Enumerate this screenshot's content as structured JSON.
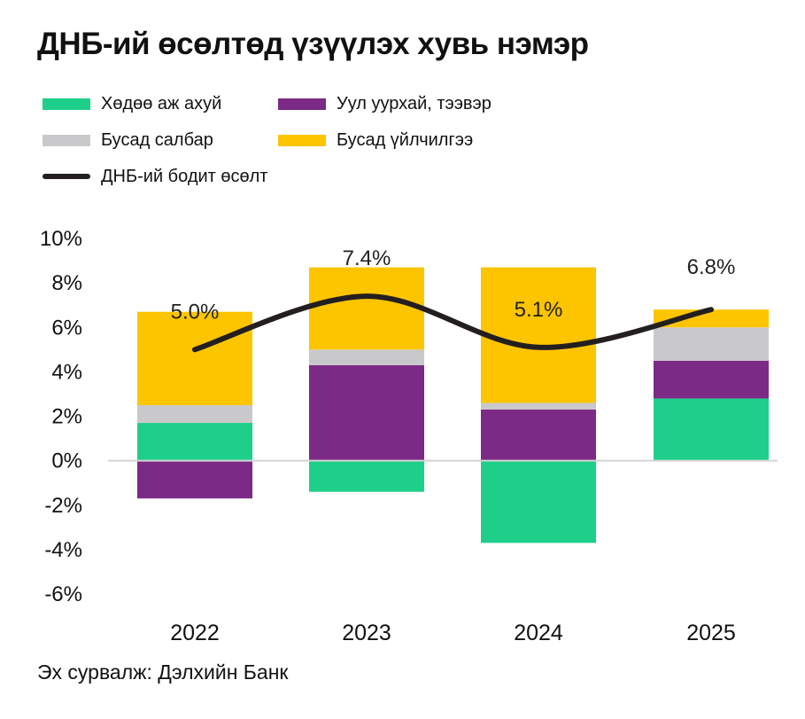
{
  "title": "ДНБ-ий өсөлтөд үзүүлэх хувь нэмэр",
  "legend": {
    "agriculture": "Хөдөө аж ахуй",
    "mining": "Уул уурхай, тээвэр",
    "other_sectors": "Бусад салбар",
    "other_services": "Бусад үйлчилгээ",
    "gdp_growth": "ДНБ-ий бодит өсөлт"
  },
  "colors": {
    "agriculture": "#1ecf8a",
    "mining": "#7b2a85",
    "other_sectors": "#c9c9cb",
    "other_services": "#fdc400",
    "gdp_growth": "#231f20",
    "zero_line": "#d4d4d4"
  },
  "source": "Эх сурвалж: Дэлхийн Банк",
  "chart_data": {
    "type": "bar",
    "stacked": true,
    "categories": [
      "2022",
      "2023",
      "2024",
      "2025"
    ],
    "series": [
      {
        "key": "agriculture",
        "name": "Хөдөө аж ахуй",
        "values": [
          1.7,
          -1.4,
          -3.7,
          2.8
        ]
      },
      {
        "key": "mining",
        "name": "Уул уурхай, тээвэр",
        "values": [
          -1.7,
          4.3,
          2.3,
          1.7
        ]
      },
      {
        "key": "other_sectors",
        "name": "Бусад салбар",
        "values": [
          0.8,
          0.7,
          0.3,
          1.5
        ]
      },
      {
        "key": "other_services",
        "name": "Бусад үйлчилгээ",
        "values": [
          4.2,
          3.7,
          6.1,
          0.8
        ]
      }
    ],
    "line": {
      "key": "gdp_growth",
      "name": "ДНБ-ий бодит өсөлт",
      "values": [
        5.0,
        7.4,
        5.1,
        6.8
      ],
      "labels": [
        "5.0%",
        "7.4%",
        "5.1%",
        "6.8%"
      ]
    },
    "ylim": [
      -6,
      10
    ],
    "yticks": [
      10,
      8,
      6,
      4,
      2,
      0,
      -2,
      -4,
      -6
    ],
    "ytick_labels": [
      "10%",
      "8%",
      "6%",
      "4%",
      "2%",
      "0%",
      "-2%",
      "-4%",
      "-6%"
    ],
    "xlabel": "",
    "ylabel": "",
    "grid": false
  }
}
